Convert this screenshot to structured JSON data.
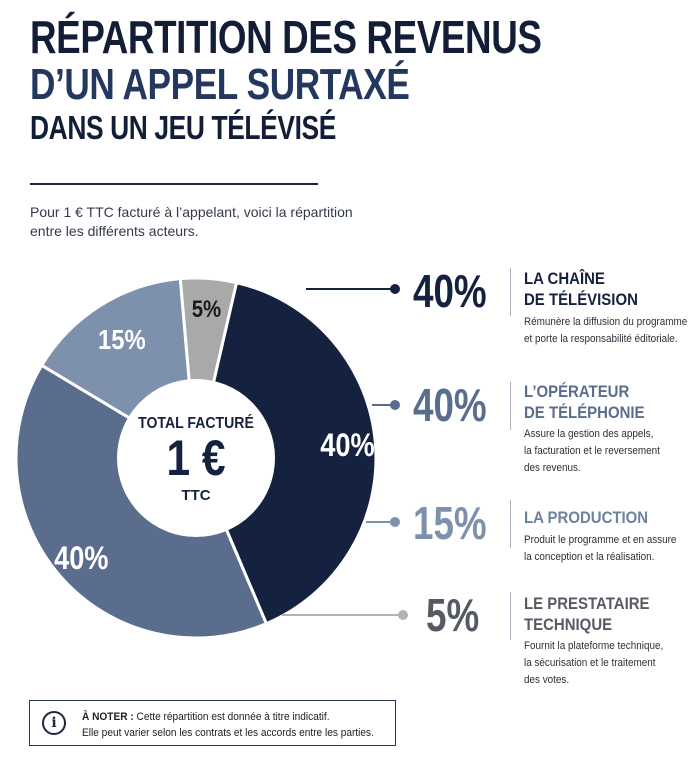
{
  "title": {
    "line1": "RÉPARTITION DES REVENUS",
    "line2": "D’UN APPEL SURTAXÉ",
    "line3": "DANS UN JEU TÉLÉVISÉ"
  },
  "subtitle": {
    "line1": "Pour 1 € TTC facturé à l’appelant, voici la répartition",
    "line2": "entre les différents acteurs."
  },
  "center": {
    "label": "TOTAL FACTURÉ",
    "value": "1 €",
    "suffix": "TTC"
  },
  "colors": {
    "navy": "#15223f",
    "slate": "#5a6d8c",
    "light_slate": "#7d91ad",
    "gray": "#a9a9a9",
    "leader_gray": "#8a8f99"
  },
  "chart_data": {
    "type": "pie",
    "title": "RÉPARTITION DES REVENUS D’UN APPEL SURTAXÉ DANS UN JEU TÉLÉVISÉ",
    "categories": [
      "LA CHAÎNE DE TÉLÉVISION",
      "L’OPÉRATEUR DE TÉLÉPHONIE",
      "LA PRODUCTION",
      "LE PRESTATAIRE TECHNIQUE"
    ],
    "values": [
      40,
      40,
      15,
      5
    ],
    "slice_labels": [
      "40%",
      "40%",
      "15%",
      "5%"
    ],
    "slice_colors": [
      "#15223f",
      "#5a6d8c",
      "#7d91ad",
      "#a9a9a9"
    ],
    "donut": true
  },
  "legend": [
    {
      "pct": "40%",
      "label_line1": "LA CHAÎNE",
      "label_line2": "DE TÉLÉVISION",
      "desc_line1": "Rémunère la diffusion du programme",
      "desc_line2": "et porte la responsabilité éditoriale.",
      "desc_line3": "",
      "pct_color": "#15223f",
      "label_color": "#15223f"
    },
    {
      "pct": "40%",
      "label_line1": "L’OPÉRATEUR",
      "label_line2": "DE TÉLÉPHONIE",
      "desc_line1": "Assure la gestion des appels,",
      "desc_line2": "la facturation et le reversement",
      "desc_line3": "des revenus.",
      "pct_color": "#5a6d8c",
      "label_color": "#5a6d8c"
    },
    {
      "pct": "15%",
      "label_line1": "LA PRODUCTION",
      "label_line2": "",
      "desc_line1": "Produit le programme et en assure",
      "desc_line2": "la conception et la réalisation.",
      "desc_line3": "",
      "pct_color": "#7d91ad",
      "label_color": "#6d82a0"
    },
    {
      "pct": "5%",
      "label_line1": "LE PRESTATAIRE",
      "label_line2": "TECHNIQUE",
      "desc_line1": "Fournit la plateforme technique,",
      "desc_line2": "la sécurisation et le traitement",
      "desc_line3": "des votes.",
      "pct_color": "#555a63",
      "label_color": "#555a63"
    }
  ],
  "note": {
    "icon": "info-icon",
    "glyph": "i",
    "bold": "À NOTER :",
    "line1": "Cette répartition est donnée à titre indicatif.",
    "line2": "Elle peut varier selon les contrats et les accords entre les parties."
  }
}
